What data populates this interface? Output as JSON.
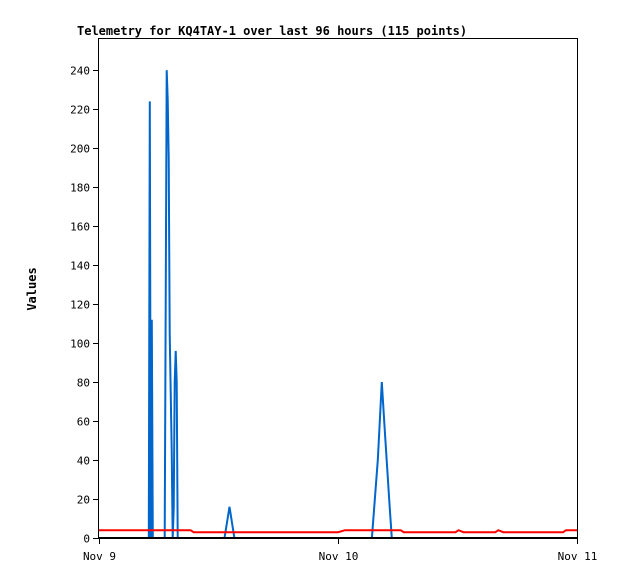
{
  "chart_data": {
    "type": "line",
    "title": "Telemetry for KQ4TAY-1 over last 96 hours (115 points)",
    "xlabel": "",
    "ylabel": "Values",
    "xlim_hours": [
      0,
      48
    ],
    "ylim": [
      0,
      256
    ],
    "y_ticks": [
      0,
      20,
      40,
      60,
      80,
      100,
      120,
      140,
      160,
      180,
      200,
      220,
      240
    ],
    "x_ticks": [
      {
        "label": "Nov 9",
        "hours": 0
      },
      {
        "label": "Nov 10",
        "hours": 24
      },
      {
        "label": "Nov 11",
        "hours": 48
      }
    ],
    "grid": false,
    "series": [
      {
        "color": "#0066cc",
        "points": [
          [
            0,
            0
          ],
          [
            5.0,
            0
          ],
          [
            5.1,
            224
          ],
          [
            5.2,
            0
          ],
          [
            5.3,
            112
          ],
          [
            5.4,
            0
          ],
          [
            6.6,
            0
          ],
          [
            6.7,
            120
          ],
          [
            6.8,
            240
          ],
          [
            6.9,
            225
          ],
          [
            7.0,
            195
          ],
          [
            7.1,
            105
          ],
          [
            7.2,
            75
          ],
          [
            7.3,
            45
          ],
          [
            7.4,
            0
          ],
          [
            7.5,
            15
          ],
          [
            7.6,
            80
          ],
          [
            7.7,
            96
          ],
          [
            7.8,
            80
          ],
          [
            7.9,
            0
          ],
          [
            12.6,
            0
          ],
          [
            13.1,
            16
          ],
          [
            13.6,
            0
          ],
          [
            27.4,
            0
          ],
          [
            28.0,
            40
          ],
          [
            28.4,
            80
          ],
          [
            28.7,
            55
          ],
          [
            29.2,
            15
          ],
          [
            29.4,
            0
          ],
          [
            48,
            0
          ]
        ]
      },
      {
        "color": "#ff0000",
        "points": [
          [
            0,
            4
          ],
          [
            9.2,
            4
          ],
          [
            9.5,
            3
          ],
          [
            24,
            3
          ],
          [
            24.7,
            4
          ],
          [
            30.3,
            4
          ],
          [
            30.6,
            3
          ],
          [
            35.8,
            3
          ],
          [
            36.1,
            4
          ],
          [
            36.6,
            3
          ],
          [
            39.8,
            3
          ],
          [
            40.1,
            4
          ],
          [
            40.6,
            3
          ],
          [
            46.6,
            3
          ],
          [
            46.9,
            4
          ],
          [
            48,
            4
          ]
        ]
      },
      {
        "color": "#000000",
        "points": [
          [
            0,
            0
          ],
          [
            48,
            0
          ]
        ]
      }
    ]
  }
}
